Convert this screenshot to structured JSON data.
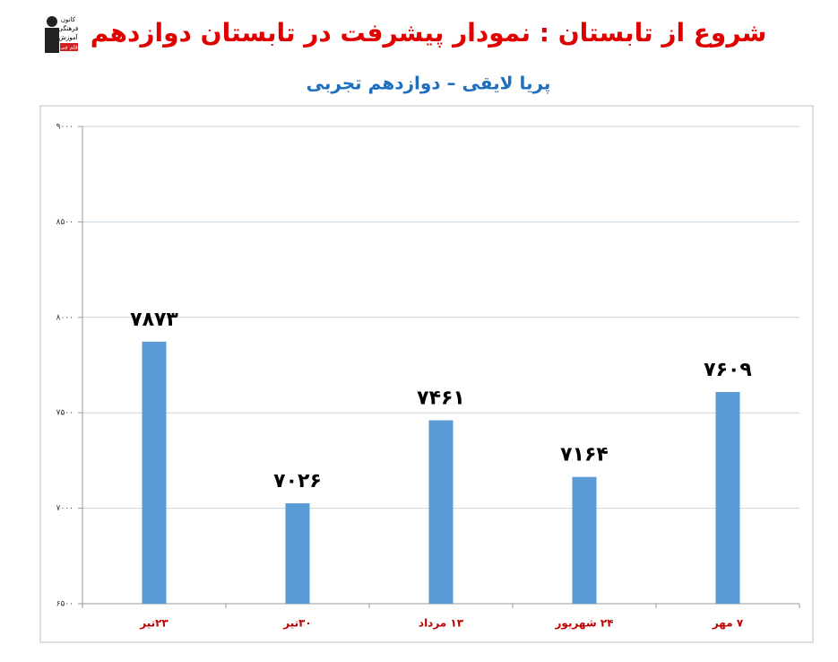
{
  "logo": [
    "کانون",
    "فرهنگی",
    "آموزش",
    "قلم چی"
  ],
  "chart_data": {
    "type": "bar",
    "title": "شروع از تابستان : نمودار پیشرفت در تابستان دوازدهم",
    "subtitle": "پریا لایقی – دوازدهم تجربی",
    "categories": [
      "۲۳تیر",
      "۳۰تیر",
      "۱۳ مرداد",
      "۲۴ شهریور",
      "۷ مهر"
    ],
    "values": [
      7873,
      7026,
      7461,
      7164,
      7609
    ],
    "value_labels": [
      "۷۸۷۳",
      "۷۰۲۶",
      "۷۴۶۱",
      "۷۱۶۴",
      "۷۶۰۹"
    ],
    "color": "#5b9bd5",
    "ylim": [
      6500,
      9000
    ],
    "yticks": [
      {
        "value": 6500,
        "label": "۶۵۰۰"
      },
      {
        "value": 7000,
        "label": "۷۰۰۰"
      },
      {
        "value": 7500,
        "label": "۷۵۰۰"
      },
      {
        "value": 8000,
        "label": "۸۰۰۰"
      },
      {
        "value": 8500,
        "label": "۸۵۰۰"
      },
      {
        "value": 9000,
        "label": "۹۰۰۰"
      }
    ],
    "grid": true
  }
}
